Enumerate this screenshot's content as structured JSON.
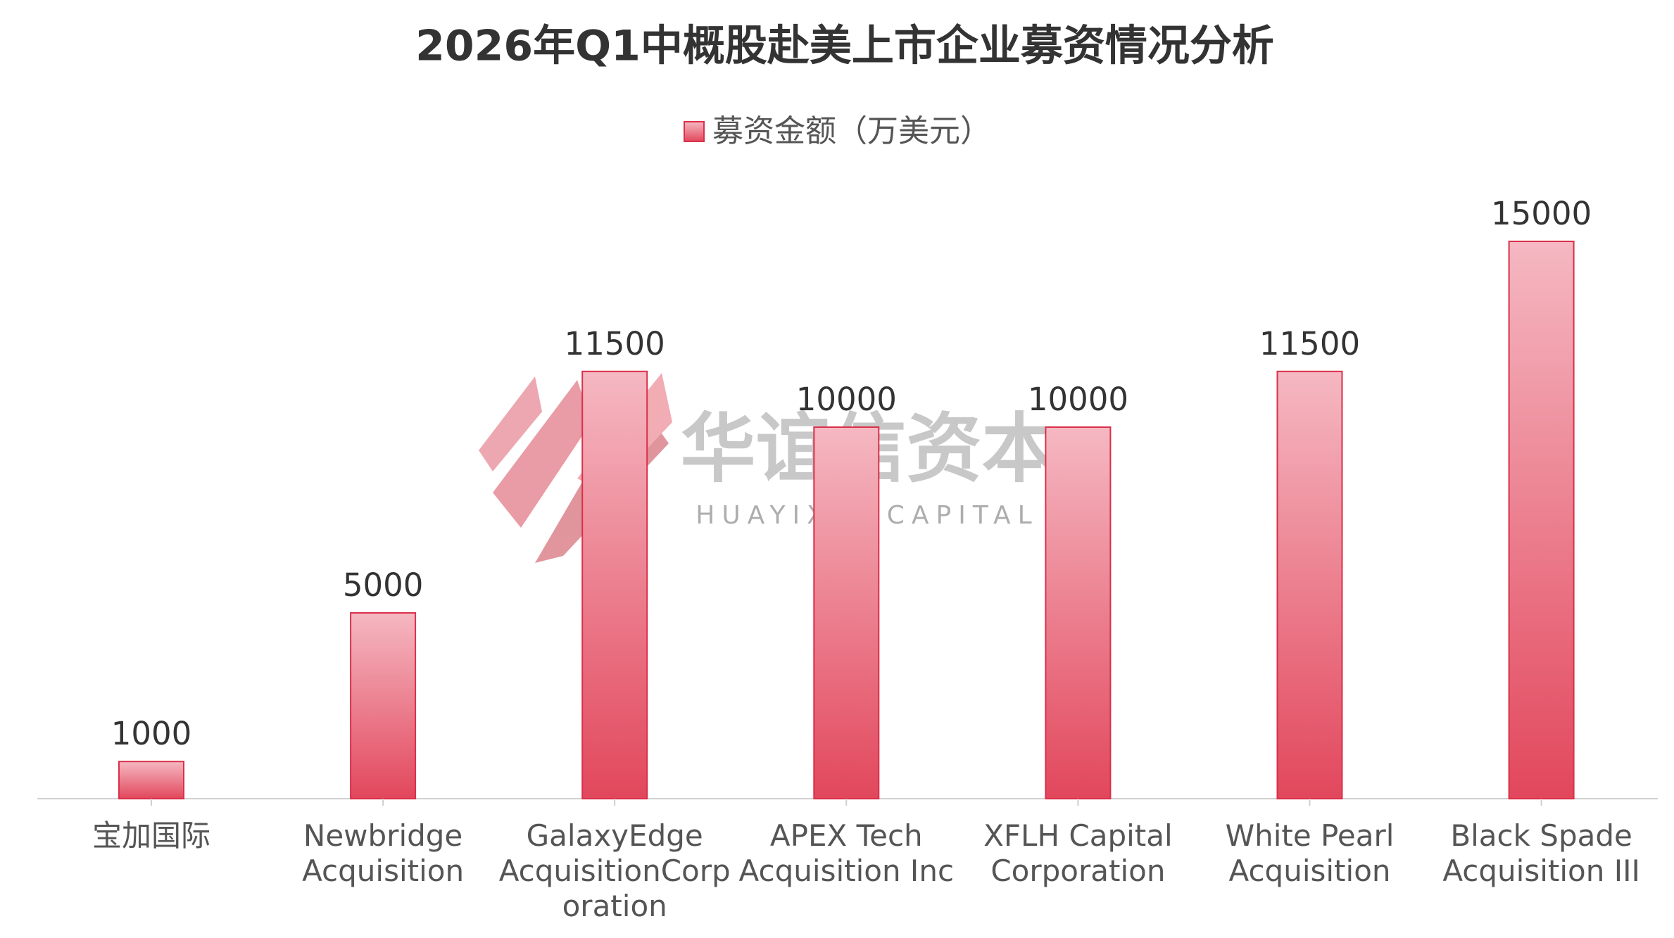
{
  "chart_data": {
    "type": "bar",
    "title": "2026年Q1中概股赴美上市企业募资情况分析",
    "categories": [
      "宝加国际",
      "Newbridge\nAcquisition",
      "GalaxyEdge\nAcquisitionCorp\noration",
      "APEX Tech\nAcquisition Inc",
      "XFLH Capital\nCorporation",
      "White Pearl\nAcquisition",
      "Black Spade\nAcquisition III"
    ],
    "series": [
      {
        "name": "募资金额（万美元）",
        "color": "#e24a5e",
        "values": [
          1000,
          5000,
          11500,
          10000,
          10000,
          11500,
          15000
        ]
      }
    ],
    "watermark": {
      "name": "华谊信资本",
      "subtitle": "HUAYIXIN CAPITAL"
    }
  }
}
